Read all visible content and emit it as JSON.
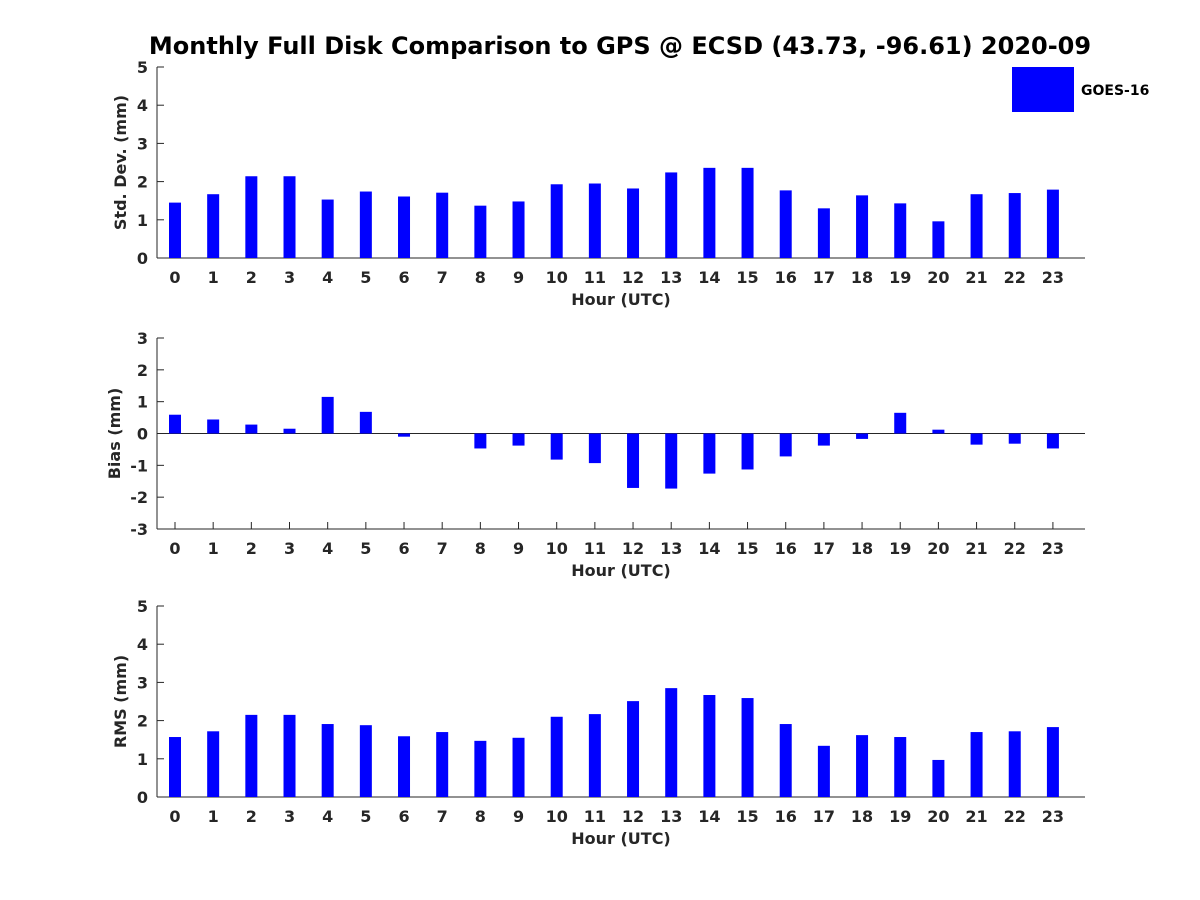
{
  "title": "Monthly Full Disk Comparison to GPS @ ECSD (43.73, -96.61) 2020-09",
  "legend": {
    "label": "GOES-16",
    "color": "#0000ff"
  },
  "chart_data": [
    {
      "type": "bar",
      "series_name": "GOES-16",
      "color": "#0000ff",
      "xlabel": "Hour (UTC)",
      "ylabel": "Std. Dev. (mm)",
      "ylim": [
        0,
        5
      ],
      "yticks": [
        0,
        1,
        2,
        3,
        4,
        5
      ],
      "categories": [
        "0",
        "1",
        "2",
        "3",
        "4",
        "5",
        "6",
        "7",
        "8",
        "9",
        "10",
        "11",
        "12",
        "13",
        "14",
        "15",
        "16",
        "17",
        "18",
        "19",
        "20",
        "21",
        "22",
        "23"
      ],
      "values": [
        1.45,
        1.67,
        2.14,
        2.14,
        1.53,
        1.74,
        1.61,
        1.71,
        1.37,
        1.48,
        1.93,
        1.95,
        1.82,
        2.24,
        2.36,
        2.36,
        1.77,
        1.3,
        1.64,
        1.43,
        0.96,
        1.67,
        1.7,
        1.79
      ]
    },
    {
      "type": "bar",
      "series_name": "GOES-16",
      "color": "#0000ff",
      "xlabel": "Hour (UTC)",
      "ylabel": "Bias (mm)",
      "ylim": [
        -3,
        3
      ],
      "yticks": [
        -3,
        -2,
        -1,
        0,
        1,
        2,
        3
      ],
      "categories": [
        "0",
        "1",
        "2",
        "3",
        "4",
        "5",
        "6",
        "7",
        "8",
        "9",
        "10",
        "11",
        "12",
        "13",
        "14",
        "15",
        "16",
        "17",
        "18",
        "19",
        "20",
        "21",
        "22",
        "23"
      ],
      "values": [
        0.59,
        0.44,
        0.28,
        0.15,
        1.15,
        0.68,
        -0.1,
        0.0,
        -0.47,
        -0.38,
        -0.82,
        -0.93,
        -1.71,
        -1.73,
        -1.26,
        -1.13,
        -0.72,
        -0.38,
        -0.17,
        0.65,
        0.12,
        -0.35,
        -0.32,
        -0.47
      ]
    },
    {
      "type": "bar",
      "series_name": "GOES-16",
      "color": "#0000ff",
      "xlabel": "Hour (UTC)",
      "ylabel": "RMS (mm)",
      "ylim": [
        0,
        5
      ],
      "yticks": [
        0,
        1,
        2,
        3,
        4,
        5
      ],
      "categories": [
        "0",
        "1",
        "2",
        "3",
        "4",
        "5",
        "6",
        "7",
        "8",
        "9",
        "10",
        "11",
        "12",
        "13",
        "14",
        "15",
        "16",
        "17",
        "18",
        "19",
        "20",
        "21",
        "22",
        "23"
      ],
      "values": [
        1.57,
        1.72,
        2.15,
        2.15,
        1.91,
        1.88,
        1.59,
        1.7,
        1.47,
        1.55,
        2.1,
        2.17,
        2.51,
        2.85,
        2.67,
        2.59,
        1.91,
        1.34,
        1.62,
        1.57,
        0.97,
        1.7,
        1.72,
        1.83
      ]
    }
  ]
}
